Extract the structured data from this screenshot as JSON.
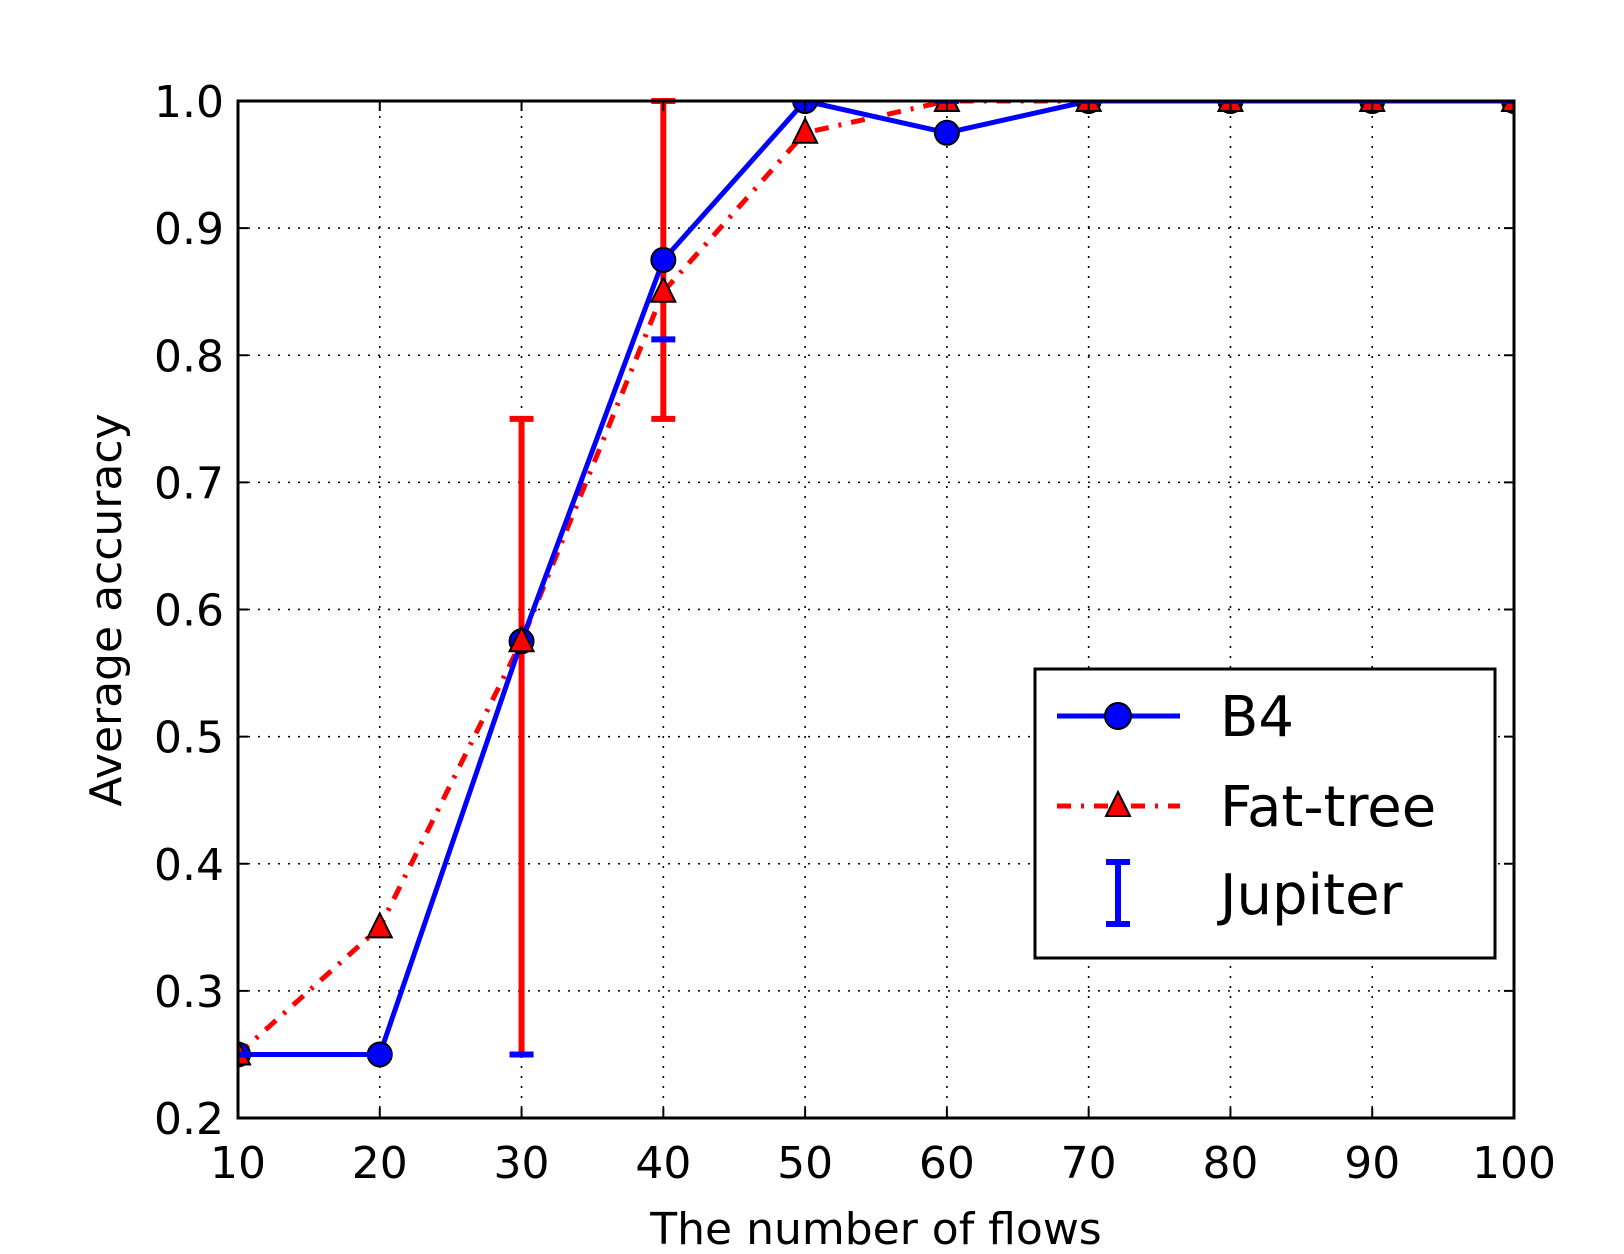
{
  "chart_data": {
    "type": "line",
    "xlabel": "The number of flows",
    "ylabel": "Average accuracy",
    "xlim": [
      10,
      100
    ],
    "ylim": [
      0.2,
      1.0
    ],
    "x_ticks": [
      10,
      20,
      30,
      40,
      50,
      60,
      70,
      80,
      90,
      100
    ],
    "x_tick_labels": [
      "10",
      "20",
      "30",
      "40",
      "50",
      "60",
      "70",
      "80",
      "90",
      "100"
    ],
    "y_ticks": [
      0.2,
      0.3,
      0.4,
      0.5,
      0.6,
      0.7,
      0.8,
      0.9,
      1.0
    ],
    "y_tick_labels": [
      "0.2",
      "0.3",
      "0.4",
      "0.5",
      "0.6",
      "0.7",
      "0.8",
      "0.9",
      "1.0"
    ],
    "grid": true,
    "legend_position": "center-right",
    "x": [
      10,
      20,
      30,
      40,
      50,
      60,
      70,
      80,
      90,
      100
    ],
    "series": [
      {
        "name": "B4",
        "style": "solid",
        "marker": "circle",
        "color": "#0000ff",
        "marker_color": "#0000ff",
        "values": [
          0.25,
          0.25,
          0.575,
          0.875,
          1.0,
          0.975,
          1.0,
          1.0,
          1.0,
          1.0
        ]
      },
      {
        "name": "Fat-tree",
        "style": "dashdot",
        "marker": "triangle",
        "color": "#ff0000",
        "marker_color": "#ff0000",
        "values": [
          0.25,
          0.35,
          0.575,
          0.85,
          0.975,
          1.0,
          1.0,
          1.0,
          1.0,
          1.0
        ]
      },
      {
        "name": "Jupiter",
        "style": "errorbar",
        "color": "#0000ff",
        "values": [
          0.25,
          0.25,
          0.25,
          0.8125,
          1.0,
          1.0,
          1.0,
          1.0,
          1.0,
          1.0
        ]
      }
    ],
    "error_bars": [
      {
        "x": 20,
        "low": 0.25,
        "high": 0.25,
        "color": "#ff0000"
      },
      {
        "x": 30,
        "low": 0.25,
        "high": 0.75,
        "color": "#ff0000"
      },
      {
        "x": 40,
        "low": 0.75,
        "high": 1.0,
        "color": "#ff0000"
      }
    ]
  }
}
